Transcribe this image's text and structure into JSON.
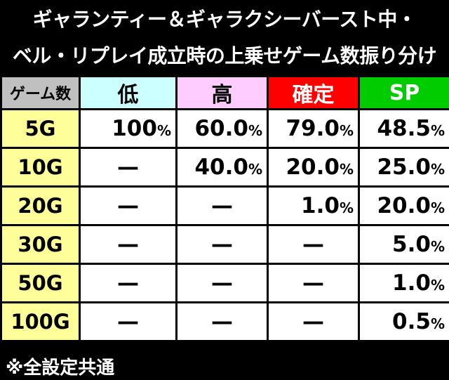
{
  "title": [
    "ギャランティー＆ギャラクシーバースト中・",
    "ベル・リプレイ成立時の上乗せゲーム数振り分け"
  ],
  "table": {
    "header": [
      "ゲーム数",
      "低",
      "高",
      "確定",
      "SP"
    ],
    "rows": [
      [
        "5G",
        "100%",
        "60.0%",
        "79.0%",
        "48.5%"
      ],
      [
        "10G",
        "—",
        "40.0%",
        "20.0%",
        "25.0%"
      ],
      [
        "20G",
        "—",
        "—",
        "1.0%",
        "20.0%"
      ],
      [
        "30G",
        "—",
        "—",
        "—",
        "5.0%"
      ],
      [
        "50G",
        "—",
        "—",
        "—",
        "1.0%"
      ],
      [
        "100G",
        "—",
        "—",
        "—",
        "0.5%"
      ]
    ]
  },
  "note": "※全設定共通"
}
